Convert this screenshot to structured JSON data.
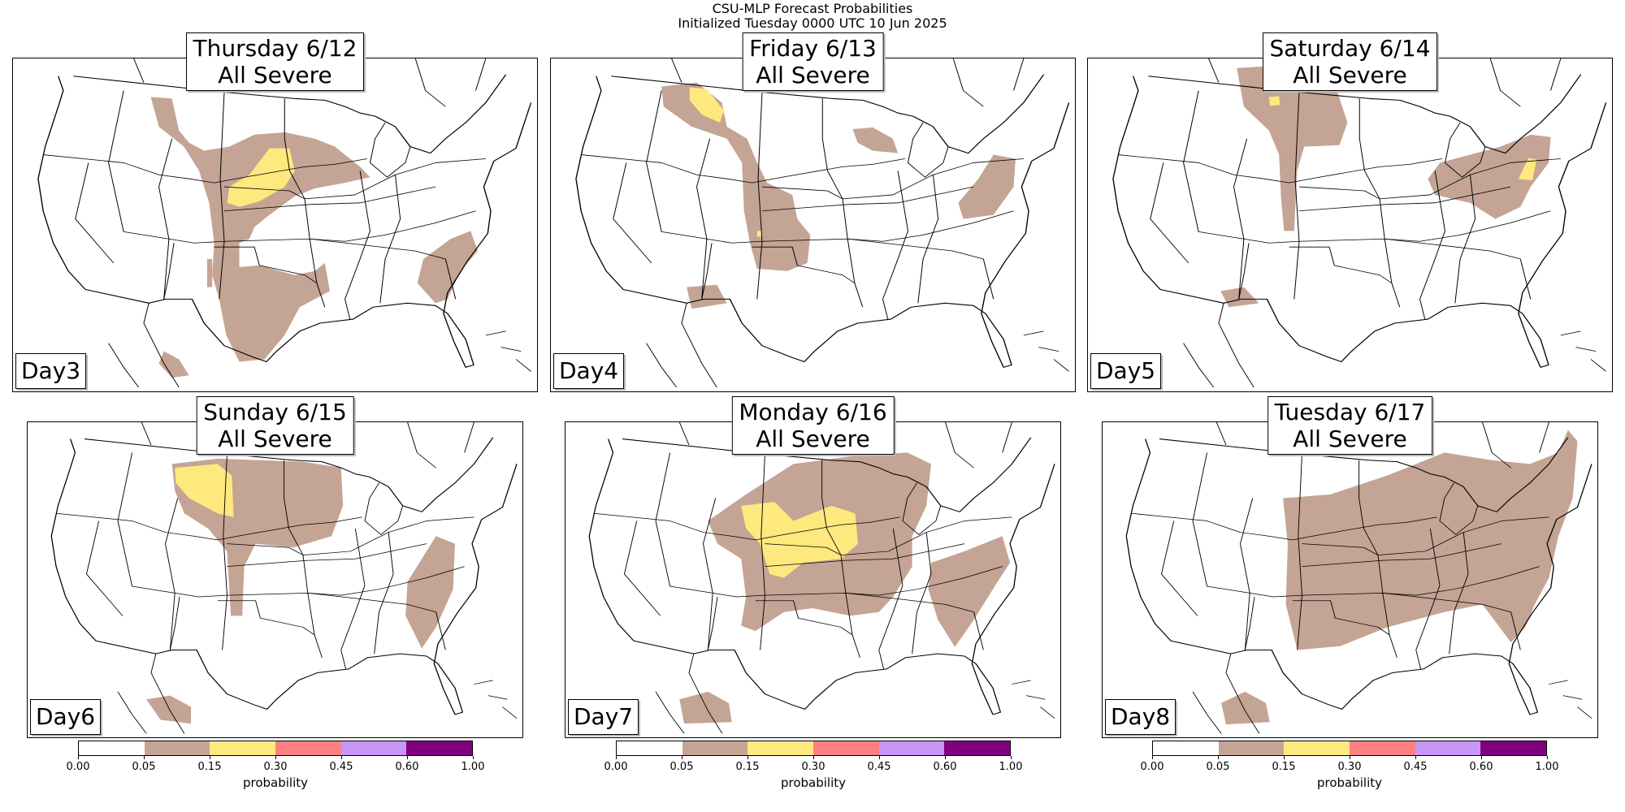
{
  "figure": {
    "title_line1": "CSU-MLP Forecast Probabilities",
    "title_line2": "Initialized Tuesday 0000 UTC 10 Jun 2025"
  },
  "chart_data": {
    "type": "heatmap",
    "title": "CSU-MLP Forecast Probabilities — Initialized Tuesday 0000 UTC 10 Jun 2025",
    "panels": [
      {
        "title_day": "Thursday 6/12",
        "title_hazard": "All Severe",
        "day_label": "Day3",
        "max_category": "0.15-0.30",
        "regions": [
          "Northern/Central High Plains to Texas (0.05-0.15)",
          "Nebraska/South Dakota (0.15-0.30)",
          "Southeast Carolinas/Georgia (0.05-0.15)"
        ]
      },
      {
        "title_day": "Friday 6/13",
        "title_hazard": "All Severe",
        "day_label": "Day4",
        "max_category": "0.15-0.30",
        "regions": [
          "Montana to West Texas (0.05-0.15)",
          "Central Montana (0.15-0.30)",
          "Wisconsin (0.05-0.15)",
          "Virginia/North Carolina (0.05-0.15)"
        ]
      },
      {
        "title_day": "Saturday 6/14",
        "title_hazard": "All Severe",
        "day_label": "Day5",
        "max_category": "0.15-0.30",
        "regions": [
          "Northern Plains (0.05-0.15)",
          "Ohio Valley to Mid-Atlantic (0.05-0.15)",
          "Virginia (0.15-0.30)"
        ]
      },
      {
        "title_day": "Sunday 6/15",
        "title_hazard": "All Severe",
        "day_label": "Day6",
        "max_category": "0.15-0.30",
        "regions": [
          "Northern Plains to Upper Midwest (0.05-0.15)",
          "SE Montana/NE Wyoming (0.15-0.30)",
          "Carolinas/Virginia (0.05-0.15)"
        ]
      },
      {
        "title_day": "Monday 6/16",
        "title_hazard": "All Severe",
        "day_label": "Day7",
        "max_category": "0.15-0.30",
        "regions": [
          "Central Plains to Upper Midwest (0.05-0.15)",
          "Nebraska/Kansas (0.15-0.30)",
          "Carolinas/Georgia (0.05-0.15)"
        ]
      },
      {
        "title_day": "Tuesday 6/17",
        "title_hazard": "All Severe",
        "day_label": "Day8",
        "max_category": "0.05-0.15",
        "regions": [
          "Central Plains to Northeast and Southeast (0.05-0.15)"
        ]
      }
    ],
    "colorbar": {
      "label": "probability",
      "ticks": [
        "0.00",
        "0.05",
        "0.15",
        "0.30",
        "0.45",
        "0.60",
        "1.00"
      ],
      "bounds": [
        0,
        0.05,
        0.15,
        0.3,
        0.45,
        0.6,
        1.0
      ],
      "colors": [
        "#ffffff",
        "#c4a494",
        "#ffe97f",
        "#ff8080",
        "#c896f5",
        "#800080"
      ]
    }
  }
}
